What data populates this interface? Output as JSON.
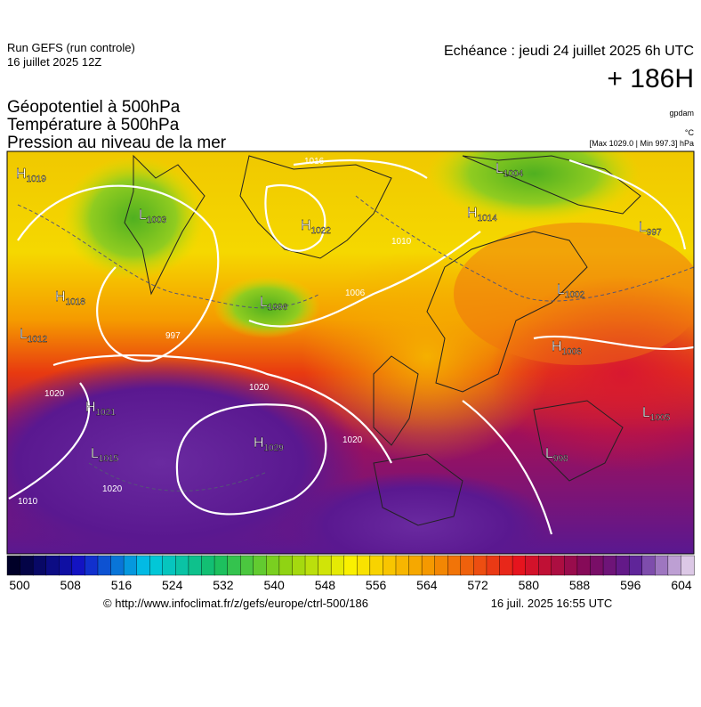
{
  "header": {
    "run": "Run GEFS (run controle)",
    "run_date": "16 juillet 2025 12Z",
    "valid": "Echéance : jeudi 24 juillet 2025 6h UTC",
    "lead": "+ 186H"
  },
  "fields": [
    "Géopotentiel à 500hPa",
    "Température à 500hPa",
    "Pression au niveau de la mer"
  ],
  "units": {
    "geopotential": "gpdam",
    "temperature": "°C",
    "pressure": "[Max 1029.0 | Min 997.3] hPa"
  },
  "centers": [
    {
      "symbol": "H",
      "value": "1019"
    },
    {
      "symbol": "L",
      "value": "1003"
    },
    {
      "symbol": "H",
      "value": "1022"
    },
    {
      "symbol": "L",
      "value": "1006"
    },
    {
      "symbol": "L",
      "value": "1004"
    },
    {
      "symbol": "H",
      "value": "1014"
    },
    {
      "symbol": "L",
      "value": "997"
    },
    {
      "symbol": "H",
      "value": "1018"
    },
    {
      "symbol": "L",
      "value": "1012"
    },
    {
      "symbol": "L",
      "value": "1002"
    },
    {
      "symbol": "H",
      "value": "1008"
    },
    {
      "symbol": "H",
      "value": "1021"
    },
    {
      "symbol": "L",
      "value": "1015"
    },
    {
      "symbol": "H",
      "value": "1029"
    },
    {
      "symbol": "L",
      "value": "1005"
    },
    {
      "symbol": "L",
      "value": "998"
    }
  ],
  "isobar_labels": [
    "1016",
    "997",
    "1020",
    "1020",
    "1020",
    "1020",
    "1010",
    "1010",
    "1006"
  ],
  "colorbar_ticks": [
    "500",
    "508",
    "516",
    "524",
    "532",
    "540",
    "548",
    "556",
    "564",
    "572",
    "580",
    "588",
    "596",
    "604"
  ],
  "footer": {
    "source": "© http://www.infoclimat.fr/z/gefs/europe/ctrl-500/186",
    "generated": "16 juil. 2025 16:55 UTC"
  }
}
